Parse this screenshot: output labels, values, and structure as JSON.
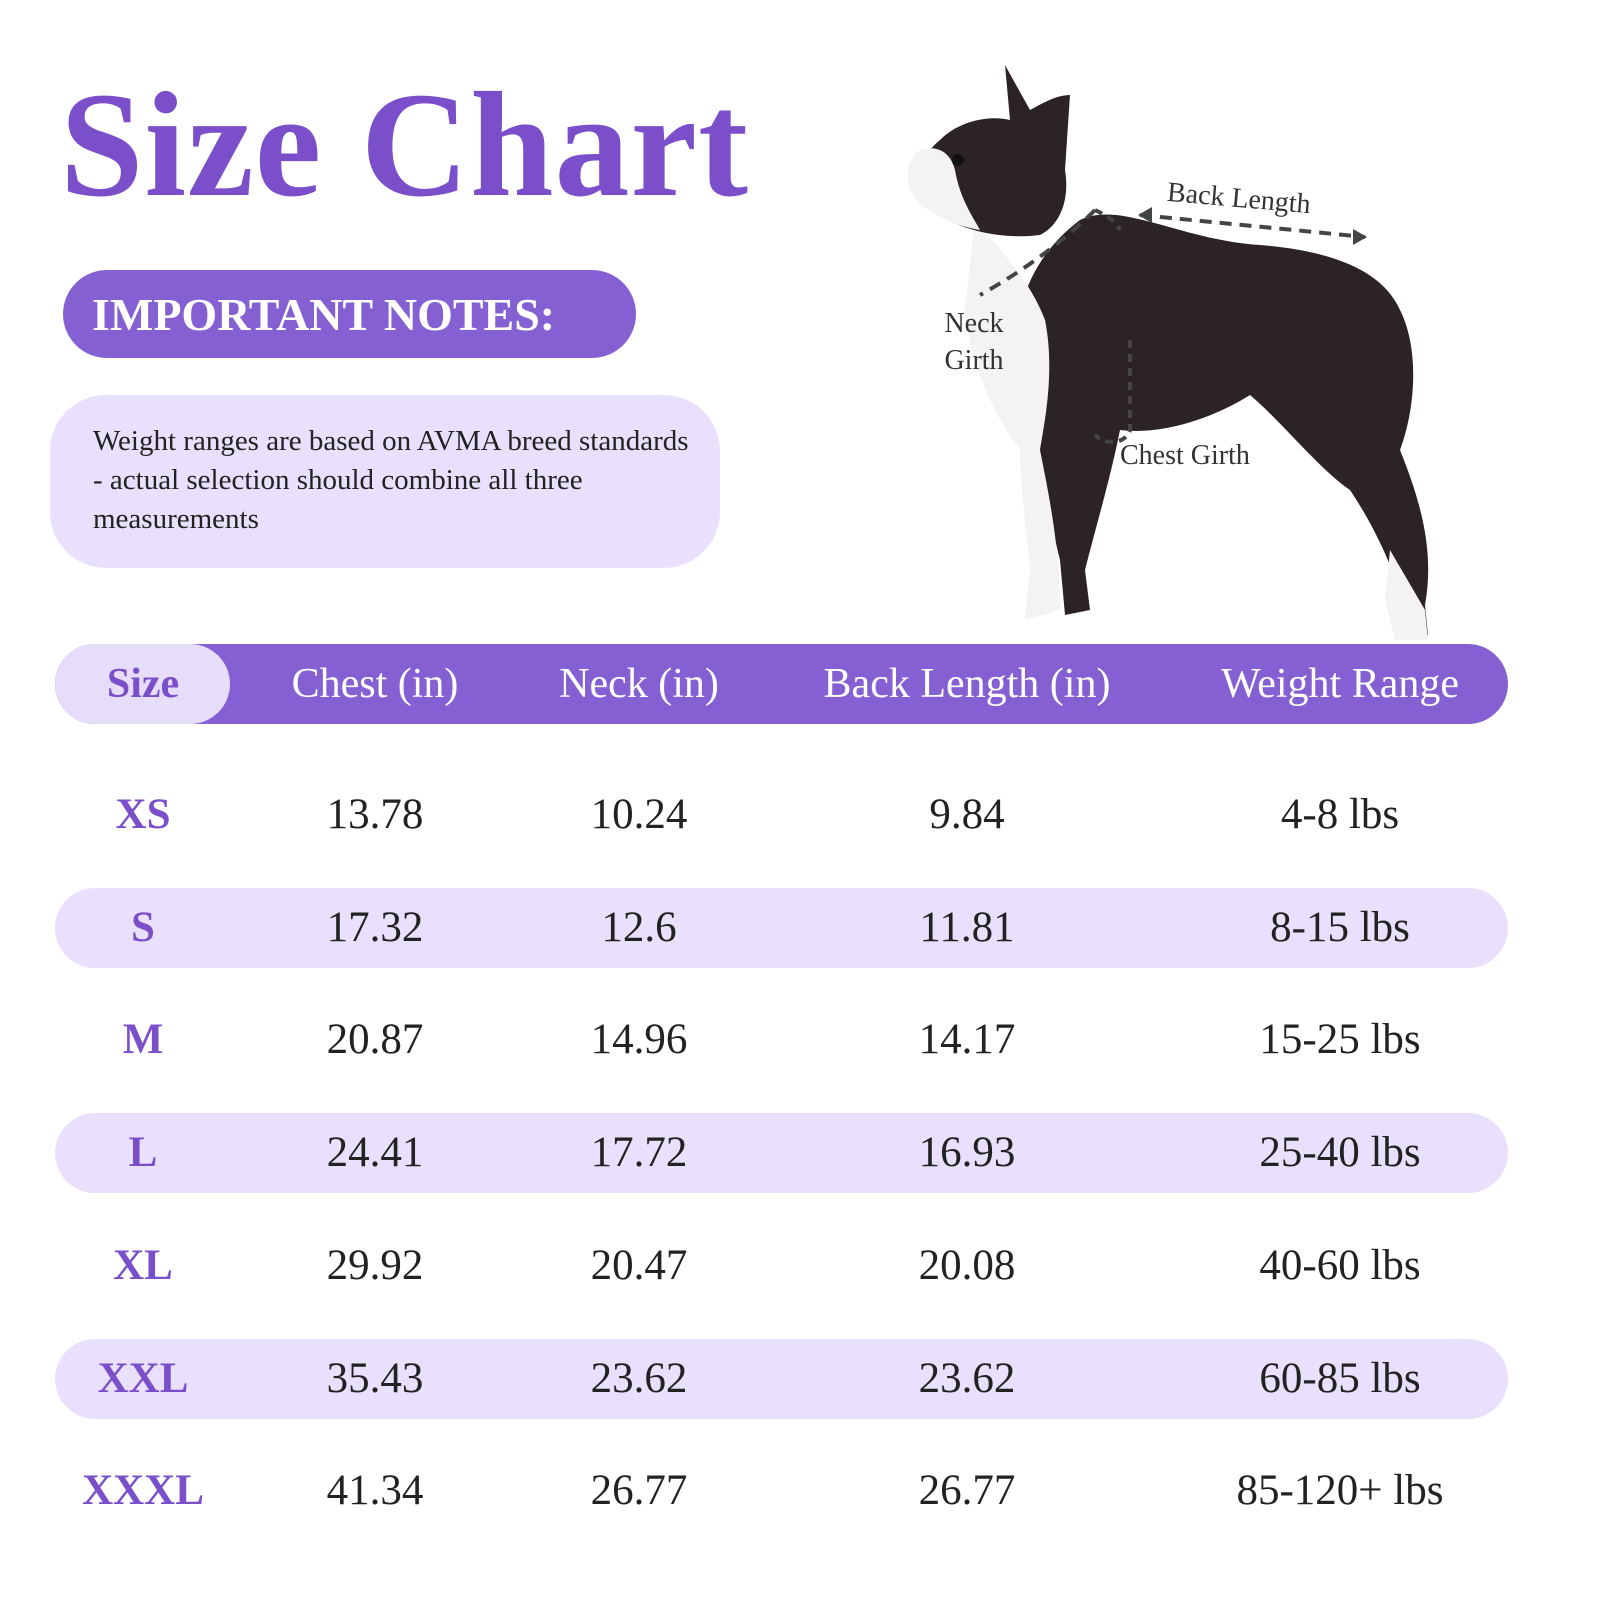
{
  "header": {
    "title": "Size Chart"
  },
  "notes": {
    "heading": "IMPORTANT NOTES:",
    "text": "Weight ranges are based on AVMA breed standards - actual selection should combine all three measurements"
  },
  "diagram": {
    "back_length": "Back Length",
    "neck_girth": "Neck Girth",
    "chest_girth": "Chest Girth"
  },
  "table": {
    "columns": [
      "Size",
      "Chest (in)",
      "Neck (in)",
      "Back Length (in)",
      "Weight Range"
    ],
    "rows": [
      [
        "XS",
        "13.78",
        "10.24",
        "9.84",
        "4-8 lbs"
      ],
      [
        "S",
        "17.32",
        "12.6",
        "11.81",
        "8-15 lbs"
      ],
      [
        "M",
        "20.87",
        "14.96",
        "14.17",
        "15-25 lbs"
      ],
      [
        "L",
        "24.41",
        "17.72",
        "16.93",
        "25-40 lbs"
      ],
      [
        "XL",
        "29.92",
        "20.47",
        "20.08",
        "40-60 lbs"
      ],
      [
        "XXL",
        "35.43",
        "23.62",
        "23.62",
        "60-85 lbs"
      ],
      [
        "XXXL",
        "41.34",
        "26.77",
        "26.77",
        "85-120+ lbs"
      ]
    ]
  }
}
